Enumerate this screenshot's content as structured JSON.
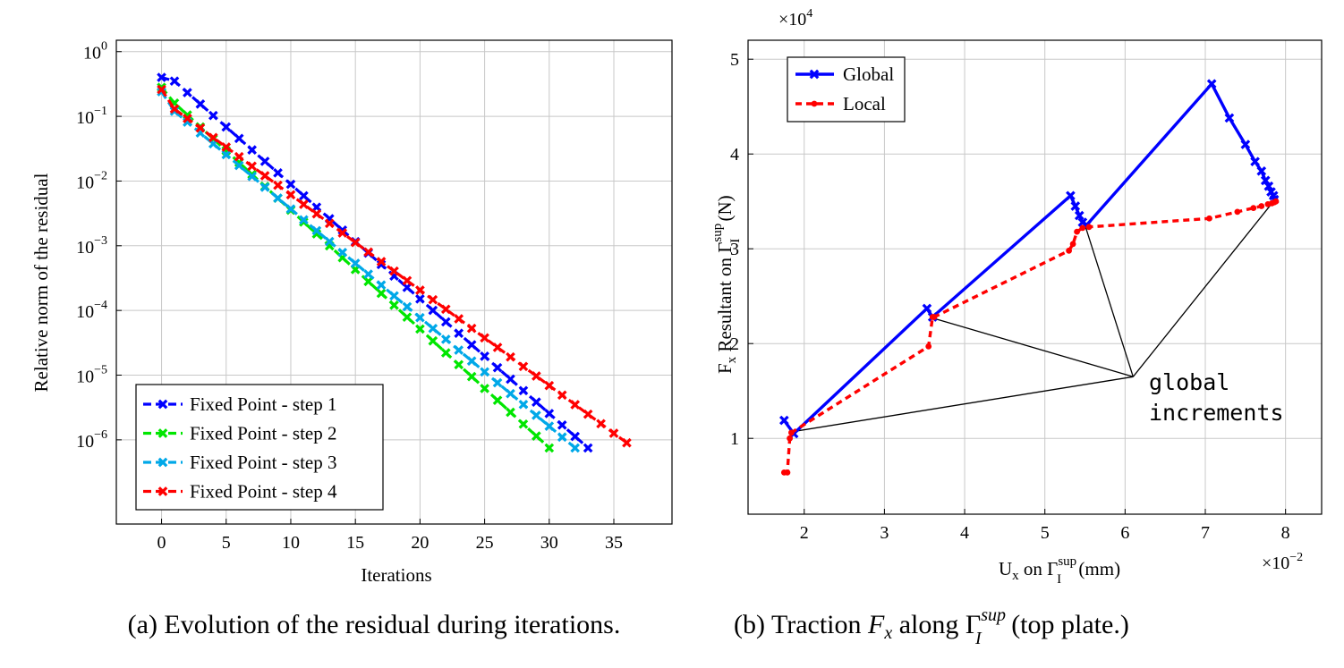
{
  "chart_data": [
    {
      "type": "line",
      "y_scale": "log",
      "xlabel": "Iterations",
      "ylabel": "Relative norm of the residual",
      "xlim": [
        -3.5,
        39.5
      ],
      "ylim": [
        5e-08,
        1.5
      ],
      "xticks": [
        0,
        5,
        10,
        15,
        20,
        25,
        30,
        35
      ],
      "yticks": [
        {
          "base": "10",
          "exp": "0",
          "v": 1
        },
        {
          "base": "10",
          "exp": "−1",
          "v": 0.1
        },
        {
          "base": "10",
          "exp": "−2",
          "v": 0.01
        },
        {
          "base": "10",
          "exp": "−3",
          "v": 0.001
        },
        {
          "base": "10",
          "exp": "−4",
          "v": 0.0001
        },
        {
          "base": "10",
          "exp": "−5",
          "v": 1e-05
        },
        {
          "base": "10",
          "exp": "−6",
          "v": 1e-06
        }
      ],
      "legend_position": "bottom-left",
      "caption": "(a) Evolution of the residual during iterations.",
      "series": [
        {
          "name": "Fixed Point - step 1",
          "color": "#0000ff",
          "x_start": 0,
          "y_start": 0.4,
          "x_end": 33,
          "y_end": 7.5e-07,
          "bend_x": 1,
          "bend_y": 0.35
        },
        {
          "name": "Fixed Point - step 2",
          "color": "#00e600",
          "x_start": 0,
          "y_start": 0.28,
          "x_end": 30,
          "y_end": 7.5e-07,
          "bend_x": 1,
          "bend_y": 0.16
        },
        {
          "name": "Fixed Point - step 3",
          "color": "#00a8e8",
          "x_start": 0,
          "y_start": 0.24,
          "x_end": 32,
          "y_end": 7.5e-07,
          "bend_x": 1,
          "bend_y": 0.12
        },
        {
          "name": "Fixed Point - step 4",
          "color": "#ff0000",
          "x_start": 0,
          "y_start": 0.26,
          "x_end": 36,
          "y_end": 9e-07,
          "bend_x": 1,
          "bend_y": 0.13
        }
      ]
    },
    {
      "type": "line",
      "xlabel_main": "U",
      "xlabel_sub": "x",
      "xlabel_mid": " on Γ",
      "xlabel_sup": "sup",
      "xlabel_sub2": "I",
      "xlabel_unit": " (mm)",
      "ylabel_main": "F",
      "ylabel_sub": "x",
      "ylabel_mid": " Resultant on Γ",
      "ylabel_sup": "sup",
      "ylabel_sub2": "I",
      "ylabel_unit": " (N)",
      "x_multiplier": "×10",
      "x_multiplier_exp": "−2",
      "y_multiplier": "×10",
      "y_multiplier_exp": "4",
      "xlim": [
        1.3,
        8.45
      ],
      "ylim": [
        0.2,
        5.2
      ],
      "xticks": [
        2,
        3,
        4,
        5,
        6,
        7,
        8
      ],
      "yticks": [
        1,
        2,
        3,
        4,
        5
      ],
      "legend_position": "top-left",
      "annotation": {
        "line1": "global",
        "line2": "increments",
        "x": 6.1,
        "y": 1.65,
        "targets": [
          [
            1.85,
            1.07
          ],
          [
            3.6,
            2.27
          ],
          [
            5.5,
            3.25
          ],
          [
            7.85,
            3.5
          ]
        ]
      },
      "caption_prefix": "(b) Traction ",
      "caption_F": "F",
      "caption_Fsub": "x",
      "caption_mid": " along Γ",
      "caption_sup": "sup",
      "caption_sub": "I",
      "caption_suffix": " (top plate.)",
      "series": [
        {
          "name": "Global",
          "color": "#0000ff",
          "style": "solid",
          "points": [
            [
              1.75,
              1.19
            ],
            [
              1.87,
              1.05
            ],
            [
              3.53,
              2.37
            ],
            [
              3.6,
              2.28
            ],
            [
              5.32,
              3.56
            ],
            [
              5.38,
              3.45
            ],
            [
              5.43,
              3.35
            ],
            [
              5.47,
              3.28
            ],
            [
              5.52,
              3.25
            ],
            [
              7.08,
              4.74
            ],
            [
              7.3,
              4.38
            ],
            [
              7.5,
              4.1
            ],
            [
              7.62,
              3.92
            ],
            [
              7.7,
              3.82
            ],
            [
              7.75,
              3.72
            ],
            [
              7.79,
              3.66
            ],
            [
              7.82,
              3.6
            ],
            [
              7.85,
              3.56
            ],
            [
              7.86,
              3.52
            ]
          ]
        },
        {
          "name": "Local",
          "color": "#ff0000",
          "style": "dashed",
          "points": [
            [
              1.75,
              0.64
            ],
            [
              1.79,
              0.64
            ],
            [
              1.82,
              1.0
            ],
            [
              1.84,
              1.06
            ],
            [
              3.55,
              1.97
            ],
            [
              3.6,
              2.28
            ],
            [
              3.62,
              2.28
            ],
            [
              5.3,
              2.98
            ],
            [
              5.35,
              3.05
            ],
            [
              5.4,
              3.18
            ],
            [
              5.47,
              3.22
            ],
            [
              5.55,
              3.23
            ],
            [
              7.05,
              3.32
            ],
            [
              7.4,
              3.39
            ],
            [
              7.6,
              3.43
            ],
            [
              7.7,
              3.45
            ],
            [
              7.78,
              3.47
            ],
            [
              7.83,
              3.48
            ],
            [
              7.86,
              3.49
            ],
            [
              7.88,
              3.5
            ]
          ]
        }
      ]
    }
  ]
}
